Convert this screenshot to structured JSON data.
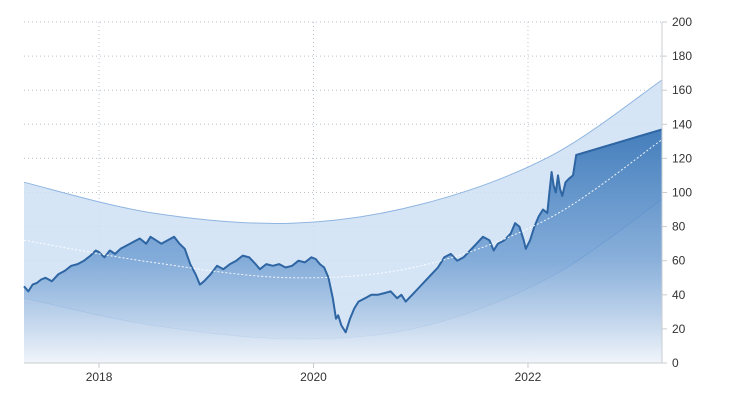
{
  "chart_data": {
    "type": "area",
    "title": "",
    "xlabel": "",
    "ylabel": "",
    "xlim": [
      2017.3,
      2023.25
    ],
    "ylim": [
      0,
      200
    ],
    "grid": true,
    "y_axis_position": "right",
    "x_ticks": [
      {
        "value": 2018,
        "label": "2018"
      },
      {
        "value": 2020,
        "label": "2020"
      },
      {
        "value": 2022,
        "label": "2022"
      }
    ],
    "y_ticks": [
      {
        "value": 0,
        "label": "0"
      },
      {
        "value": 20,
        "label": "20"
      },
      {
        "value": 40,
        "label": "40"
      },
      {
        "value": 60,
        "label": "60"
      },
      {
        "value": 80,
        "label": "80"
      },
      {
        "value": 100,
        "label": "100"
      },
      {
        "value": 120,
        "label": "120"
      },
      {
        "value": 140,
        "label": "140"
      },
      {
        "value": 160,
        "label": "160"
      },
      {
        "value": 180,
        "label": "180"
      },
      {
        "value": 200,
        "label": "200"
      }
    ],
    "series": [
      {
        "values_xy": [
          [
            2017.3,
            45
          ],
          [
            2017.34,
            42
          ],
          [
            2017.38,
            46
          ],
          [
            2017.42,
            47
          ],
          [
            2017.46,
            49
          ],
          [
            2017.5,
            50
          ],
          [
            2017.56,
            48
          ],
          [
            2017.62,
            52
          ],
          [
            2017.68,
            54
          ],
          [
            2017.74,
            57
          ],
          [
            2017.8,
            58
          ],
          [
            2017.86,
            60
          ],
          [
            2017.92,
            63
          ],
          [
            2017.97,
            66
          ],
          [
            2018.0,
            65
          ],
          [
            2018.05,
            62
          ],
          [
            2018.1,
            66
          ],
          [
            2018.15,
            64
          ],
          [
            2018.2,
            67
          ],
          [
            2018.26,
            69
          ],
          [
            2018.32,
            71
          ],
          [
            2018.38,
            73
          ],
          [
            2018.44,
            70
          ],
          [
            2018.48,
            74
          ],
          [
            2018.53,
            72
          ],
          [
            2018.58,
            70
          ],
          [
            2018.64,
            72
          ],
          [
            2018.7,
            74
          ],
          [
            2018.75,
            70
          ],
          [
            2018.8,
            67
          ],
          [
            2018.85,
            58
          ],
          [
            2018.9,
            52
          ],
          [
            2018.94,
            46
          ],
          [
            2018.98,
            48
          ],
          [
            2019.04,
            52
          ],
          [
            2019.1,
            57
          ],
          [
            2019.16,
            55
          ],
          [
            2019.22,
            58
          ],
          [
            2019.28,
            60
          ],
          [
            2019.34,
            63
          ],
          [
            2019.4,
            62
          ],
          [
            2019.46,
            58
          ],
          [
            2019.5,
            55
          ],
          [
            2019.56,
            58
          ],
          [
            2019.62,
            57
          ],
          [
            2019.68,
            58
          ],
          [
            2019.74,
            56
          ],
          [
            2019.8,
            57
          ],
          [
            2019.86,
            60
          ],
          [
            2019.92,
            59
          ],
          [
            2019.98,
            62
          ],
          [
            2020.02,
            61
          ],
          [
            2020.06,
            58
          ],
          [
            2020.1,
            56
          ],
          [
            2020.14,
            50
          ],
          [
            2020.18,
            38
          ],
          [
            2020.21,
            26
          ],
          [
            2020.23,
            28
          ],
          [
            2020.26,
            22
          ],
          [
            2020.3,
            18
          ],
          [
            2020.34,
            26
          ],
          [
            2020.38,
            32
          ],
          [
            2020.42,
            36
          ],
          [
            2020.48,
            38
          ],
          [
            2020.54,
            40
          ],
          [
            2020.6,
            40
          ],
          [
            2020.66,
            41
          ],
          [
            2020.72,
            42
          ],
          [
            2020.78,
            38
          ],
          [
            2020.82,
            40
          ],
          [
            2020.86,
            36
          ],
          [
            2020.92,
            40
          ],
          [
            2020.98,
            44
          ],
          [
            2021.04,
            48
          ],
          [
            2021.1,
            52
          ],
          [
            2021.16,
            56
          ],
          [
            2021.22,
            62
          ],
          [
            2021.28,
            64
          ],
          [
            2021.34,
            60
          ],
          [
            2021.4,
            62
          ],
          [
            2021.46,
            66
          ],
          [
            2021.52,
            70
          ],
          [
            2021.58,
            74
          ],
          [
            2021.64,
            72
          ],
          [
            2021.68,
            66
          ],
          [
            2021.72,
            70
          ],
          [
            2021.78,
            72
          ],
          [
            2021.84,
            76
          ],
          [
            2021.88,
            82
          ],
          [
            2021.92,
            80
          ],
          [
            2021.96,
            72
          ],
          [
            2021.98,
            67
          ],
          [
            2022.02,
            72
          ],
          [
            2022.06,
            80
          ],
          [
            2022.1,
            86
          ],
          [
            2022.14,
            90
          ],
          [
            2022.18,
            88
          ],
          [
            2022.2,
            100
          ],
          [
            2022.22,
            112
          ],
          [
            2022.24,
            104
          ],
          [
            2022.26,
            100
          ],
          [
            2022.28,
            110
          ],
          [
            2022.3,
            102
          ],
          [
            2022.32,
            98
          ],
          [
            2022.35,
            106
          ],
          [
            2022.38,
            108
          ],
          [
            2022.42,
            110
          ],
          [
            2022.45,
            122
          ],
          [
            2023.25,
            137
          ]
        ]
      }
    ],
    "trend_band": {
      "center": [
        [
          2017.3,
          72
        ],
        [
          2018.5,
          59
        ],
        [
          2019.8,
          50
        ],
        [
          2021.0,
          57
        ],
        [
          2022.2,
          85
        ],
        [
          2023.25,
          131
        ]
      ],
      "upper": [
        [
          2017.3,
          106
        ],
        [
          2018.5,
          88
        ],
        [
          2019.8,
          82
        ],
        [
          2021.0,
          93
        ],
        [
          2022.2,
          121
        ],
        [
          2023.25,
          166
        ]
      ],
      "lower": [
        [
          2017.3,
          38
        ],
        [
          2018.5,
          22
        ],
        [
          2019.8,
          14
        ],
        [
          2021.0,
          21
        ],
        [
          2022.2,
          50
        ],
        [
          2023.25,
          96
        ]
      ]
    },
    "colors": {
      "line": "#2e65a3",
      "area_top": "#2f6fb3",
      "area_bottom": "#eef3fa",
      "band_fill": "#cfe0f5",
      "band_edge": "#8fb5e0",
      "trend_center": "#ffffff"
    }
  }
}
